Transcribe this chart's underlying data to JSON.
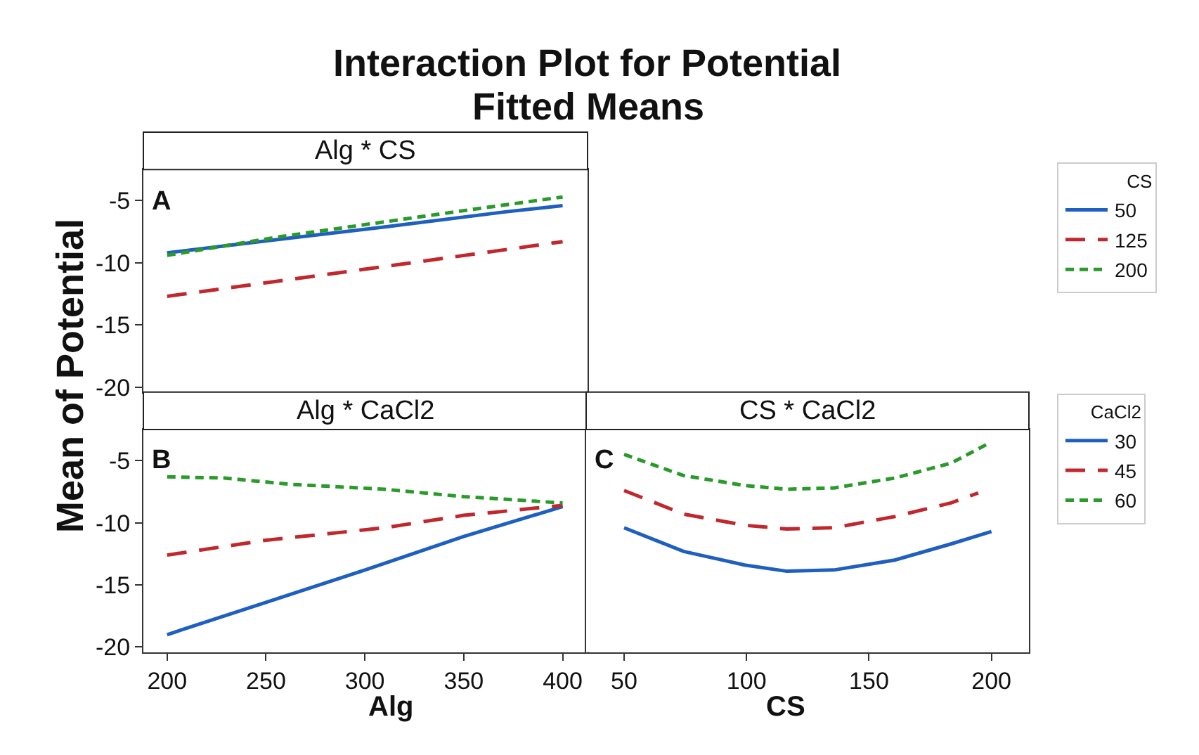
{
  "chart_data": [
    {
      "type": "line",
      "title": "Alg * CS",
      "annotations": [
        "A",
        "Interaction Plot for Potential",
        "Fitted Means"
      ],
      "ylabel": "Mean of Potential",
      "legend_title": "CS",
      "legend": "right",
      "xlim": [
        188,
        412.6
      ],
      "xticks": [
        200,
        250,
        300,
        350,
        400
      ],
      "ylim": [
        -20.4,
        -2.5
      ],
      "yticks": [
        -20,
        -15,
        -10,
        -5
      ],
      "tick_labels": "y",
      "marker": "none",
      "series": [
        {
          "name": "50",
          "color": "#1f5fbf",
          "line_style": "solid",
          "x": [
            200,
            252,
            311,
            371,
            400
          ],
          "values": [
            -9.2,
            -8.2,
            -7.1,
            -5.9,
            -5.4
          ]
        },
        {
          "name": "125",
          "color": "#c0282d",
          "line_style": "dashed",
          "x": [
            200,
            310,
            400
          ],
          "values": [
            -12.7,
            -10.3,
            -8.3
          ]
        },
        {
          "name": "200",
          "color": "#2a9a2a",
          "line_style": "dotted",
          "x": [
            200,
            257,
            350,
            400
          ],
          "values": [
            -9.4,
            -7.9,
            -5.8,
            -4.7
          ]
        }
      ]
    },
    {
      "type": "line",
      "title": "Alg * CaCl2",
      "annotations": [
        "B"
      ],
      "xlabel": "Alg",
      "legend": "right",
      "xlim": [
        188,
        412.6
      ],
      "xticks": [
        200,
        250,
        300,
        350,
        400
      ],
      "ylim": [
        -20.4,
        -2.5
      ],
      "yticks": [
        -20,
        -15,
        -10,
        -5
      ],
      "marker": "none",
      "series": [
        {
          "name": "30",
          "color": "#1f5fbf",
          "line_style": "solid",
          "x": [
            200,
            250,
            300,
            350,
            400
          ],
          "values": [
            -19.0,
            -16.4,
            -13.8,
            -11.1,
            -8.7
          ]
        },
        {
          "name": "45",
          "color": "#c0282d",
          "line_style": "dashed",
          "x": [
            200,
            250,
            310,
            350,
            400
          ],
          "values": [
            -12.6,
            -11.4,
            -10.4,
            -9.4,
            -8.6
          ]
        },
        {
          "name": "60",
          "color": "#2a9a2a",
          "line_style": "dotted",
          "x": [
            200,
            229,
            262,
            310,
            350,
            400
          ],
          "values": [
            -6.3,
            -6.4,
            -6.9,
            -7.3,
            -7.9,
            -8.4
          ]
        }
      ]
    },
    {
      "type": "line",
      "title": "CS * CaCl2",
      "annotations": [
        "C"
      ],
      "xlabel": "CS",
      "legend_title": "CaCl2",
      "legend": "right",
      "xlim": [
        34.5,
        215.3
      ],
      "xticks": [
        50,
        100,
        150,
        200
      ],
      "ylim": [
        -20.4,
        -2.5
      ],
      "yticks": [
        -20,
        -15,
        -10,
        -5
      ],
      "tick_labels": "x",
      "marker": "none",
      "series": [
        {
          "name": "30",
          "color": "#1f5fbf",
          "line_style": "solid",
          "x": [
            50,
            74.3,
            99.2,
            116.5,
            135.6,
            160.5,
            183.5,
            200
          ],
          "values": [
            -10.4,
            -12.3,
            -13.4,
            -13.9,
            -13.8,
            -13.0,
            -11.7,
            -10.7
          ]
        },
        {
          "name": "45",
          "color": "#c0282d",
          "line_style": "dashed",
          "x": [
            50,
            74.3,
            99.2,
            116.5,
            135.6,
            160.5,
            183.5,
            194.6
          ],
          "values": [
            -7.4,
            -9.3,
            -10.2,
            -10.5,
            -10.4,
            -9.5,
            -8.4,
            -7.6
          ]
        },
        {
          "name": "60",
          "color": "#2a9a2a",
          "line_style": "dotted",
          "x": [
            50,
            74.3,
            99.2,
            116.5,
            135.6,
            160.5,
            183.5,
            198
          ],
          "values": [
            -4.5,
            -6.2,
            -7.0,
            -7.3,
            -7.2,
            -6.4,
            -5.2,
            -3.7
          ]
        }
      ]
    }
  ]
}
